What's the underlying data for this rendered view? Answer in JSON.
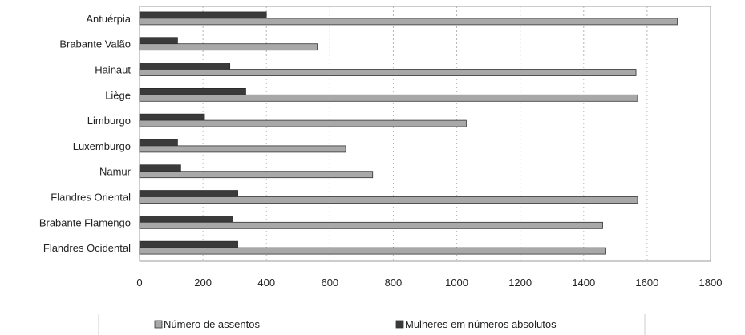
{
  "chart_data": {
    "type": "bar",
    "orientation": "horizontal",
    "title": "",
    "xlabel": "",
    "ylabel": "",
    "categories": [
      "Antuérpia",
      "Brabante Valão",
      "Hainaut",
      "Liège",
      "Limburgo",
      "Luxemburgo",
      "Namur",
      "Flandres Oriental",
      "Brabante Flamengo",
      "Flandres Ocidental"
    ],
    "series": [
      {
        "name": "Mulheres em números absolutos",
        "color": "#3a3a3a",
        "values": [
          400,
          120,
          285,
          335,
          205,
          120,
          130,
          310,
          295,
          310
        ]
      },
      {
        "name": "Número de assentos",
        "color": "#a8a8a8",
        "values": [
          1695,
          560,
          1565,
          1570,
          1030,
          650,
          735,
          1570,
          1460,
          1470
        ]
      }
    ],
    "xlim": [
      0,
      1800
    ],
    "xticks": [
      "0",
      "200",
      "400",
      "600",
      "800",
      "1000",
      "1200",
      "1400",
      "1600",
      "1800"
    ],
    "grid": "vertical-dashed",
    "legend_position": "bottom",
    "legend_order": [
      "Número de assentos",
      "Mulheres em números absolutos"
    ]
  }
}
